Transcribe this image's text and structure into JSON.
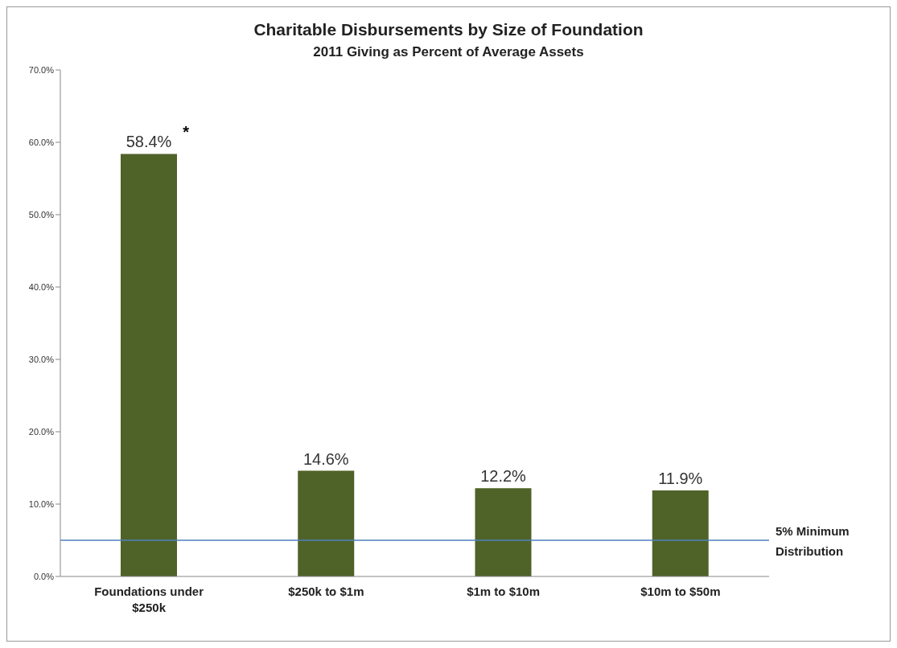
{
  "chart_data": {
    "type": "bar",
    "title": "Charitable Disbursements by Size of Foundation",
    "subtitle": "2011 Giving as Percent of Average Assets",
    "categories": [
      "Foundations under $250k",
      "$250k to $1m",
      "$1m to $10m",
      "$10m to $50m"
    ],
    "values": [
      58.4,
      14.6,
      12.2,
      11.9
    ],
    "color": "#4f6228",
    "value_labels": [
      "58.4%",
      "14.6%",
      "12.2%",
      "11.9%"
    ],
    "annotations": [
      {
        "text": "*",
        "x": "Foundations under $250k",
        "y": 58.4
      }
    ],
    "ref_lines": [
      {
        "axis": "y",
        "value": 5,
        "label": "5% Minimum Distribution",
        "color": "#4f81bd"
      }
    ],
    "ylim": [
      0,
      70
    ],
    "yticks": [
      {
        "value": 0,
        "label": "0.0%"
      },
      {
        "value": 10,
        "label": "10.0%"
      },
      {
        "value": 20,
        "label": "20.0%"
      },
      {
        "value": 30,
        "label": "30.0%"
      },
      {
        "value": 40,
        "label": "40.0%"
      },
      {
        "value": 50,
        "label": "50.0%"
      },
      {
        "value": 60,
        "label": "60.0%"
      },
      {
        "value": 70,
        "label": "70.0%"
      }
    ],
    "grid": false,
    "legend": false
  }
}
